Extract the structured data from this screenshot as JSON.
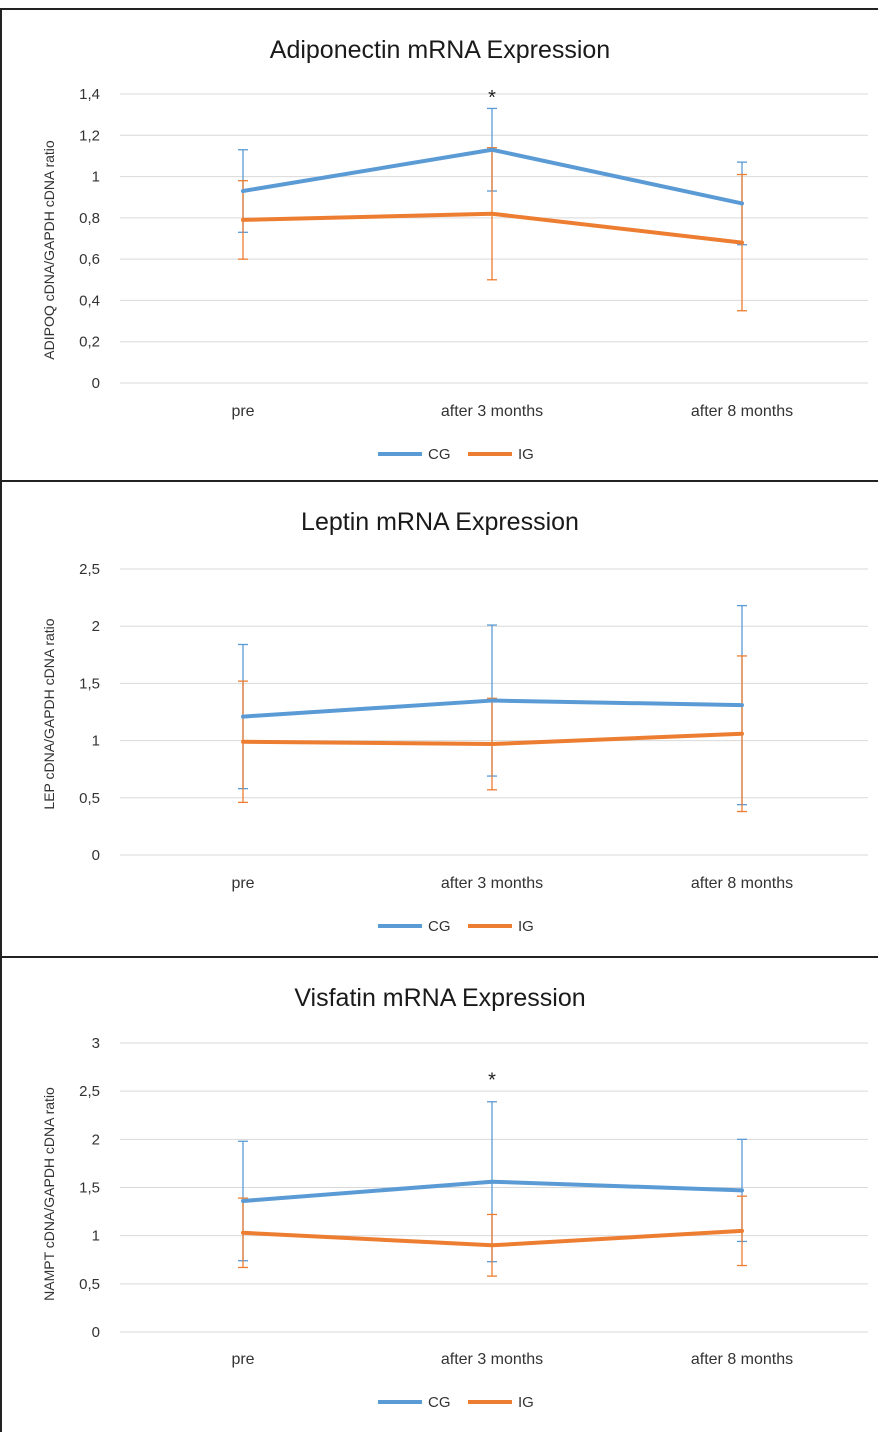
{
  "colors": {
    "CG": "#5b9bd5",
    "IG": "#ed7d31",
    "grid": "#d9d9d9"
  },
  "chart_data": [
    {
      "type": "line",
      "title": "Adiponectin mRNA Expression",
      "ylabel": "ADIPOQ cDNA/GAPDH cDNA ratio",
      "categories": [
        "pre",
        "after 3 months",
        "after 8 months"
      ],
      "ylim": [
        0,
        1.4
      ],
      "yticks": [
        "0",
        "0,2",
        "0,4",
        "0,6",
        "0,8",
        "1",
        "1,2",
        "1,4"
      ],
      "ytick_values": [
        0,
        0.2,
        0.4,
        0.6,
        0.8,
        1.0,
        1.2,
        1.4
      ],
      "grid": true,
      "legend_position": "bottom",
      "series": [
        {
          "name": "CG",
          "color": "#5b9bd5",
          "values": [
            0.93,
            1.13,
            0.87
          ],
          "error": [
            0.2,
            0.2,
            0.2
          ]
        },
        {
          "name": "IG",
          "color": "#ed7d31",
          "values": [
            0.79,
            0.82,
            0.68
          ],
          "error": [
            0.19,
            0.32,
            0.33
          ]
        }
      ],
      "annotations": [
        {
          "text": "*",
          "category": "after 3 months",
          "y": 1.4
        }
      ]
    },
    {
      "type": "line",
      "title": "Leptin mRNA Expression",
      "ylabel": "LEP cDNA/GAPDH cDNA ratio",
      "categories": [
        "pre",
        "after 3 months",
        "after 8 months"
      ],
      "ylim": [
        0,
        2.5
      ],
      "yticks": [
        "0",
        "0,5",
        "1",
        "1,5",
        "2",
        "2,5"
      ],
      "ytick_values": [
        0,
        0.5,
        1.0,
        1.5,
        2.0,
        2.5
      ],
      "grid": true,
      "legend_position": "bottom",
      "series": [
        {
          "name": "CG",
          "color": "#5b9bd5",
          "values": [
            1.21,
            1.35,
            1.31
          ],
          "error": [
            0.63,
            0.66,
            0.87
          ]
        },
        {
          "name": "IG",
          "color": "#ed7d31",
          "values": [
            0.99,
            0.97,
            1.06
          ],
          "error": [
            0.53,
            0.4,
            0.68
          ]
        }
      ],
      "annotations": []
    },
    {
      "type": "line",
      "title": "Visfatin mRNA Expression",
      "ylabel": "NAMPT cDNA/GAPDH cDNA ratio",
      "categories": [
        "pre",
        "after 3 months",
        "after 8 months"
      ],
      "ylim": [
        0,
        3
      ],
      "yticks": [
        "0",
        "0,5",
        "1",
        "1,5",
        "2",
        "2,5",
        "3"
      ],
      "ytick_values": [
        0,
        0.5,
        1.0,
        1.5,
        2.0,
        2.5,
        3.0
      ],
      "grid": true,
      "legend_position": "bottom",
      "series": [
        {
          "name": "CG",
          "color": "#5b9bd5",
          "values": [
            1.36,
            1.56,
            1.47
          ],
          "error": [
            0.62,
            0.83,
            0.53
          ]
        },
        {
          "name": "IG",
          "color": "#ed7d31",
          "values": [
            1.03,
            0.9,
            1.05
          ],
          "error": [
            0.36,
            0.32,
            0.36
          ]
        }
      ],
      "annotations": [
        {
          "text": "*",
          "category": "after 3 months",
          "y": 2.65
        }
      ]
    }
  ]
}
